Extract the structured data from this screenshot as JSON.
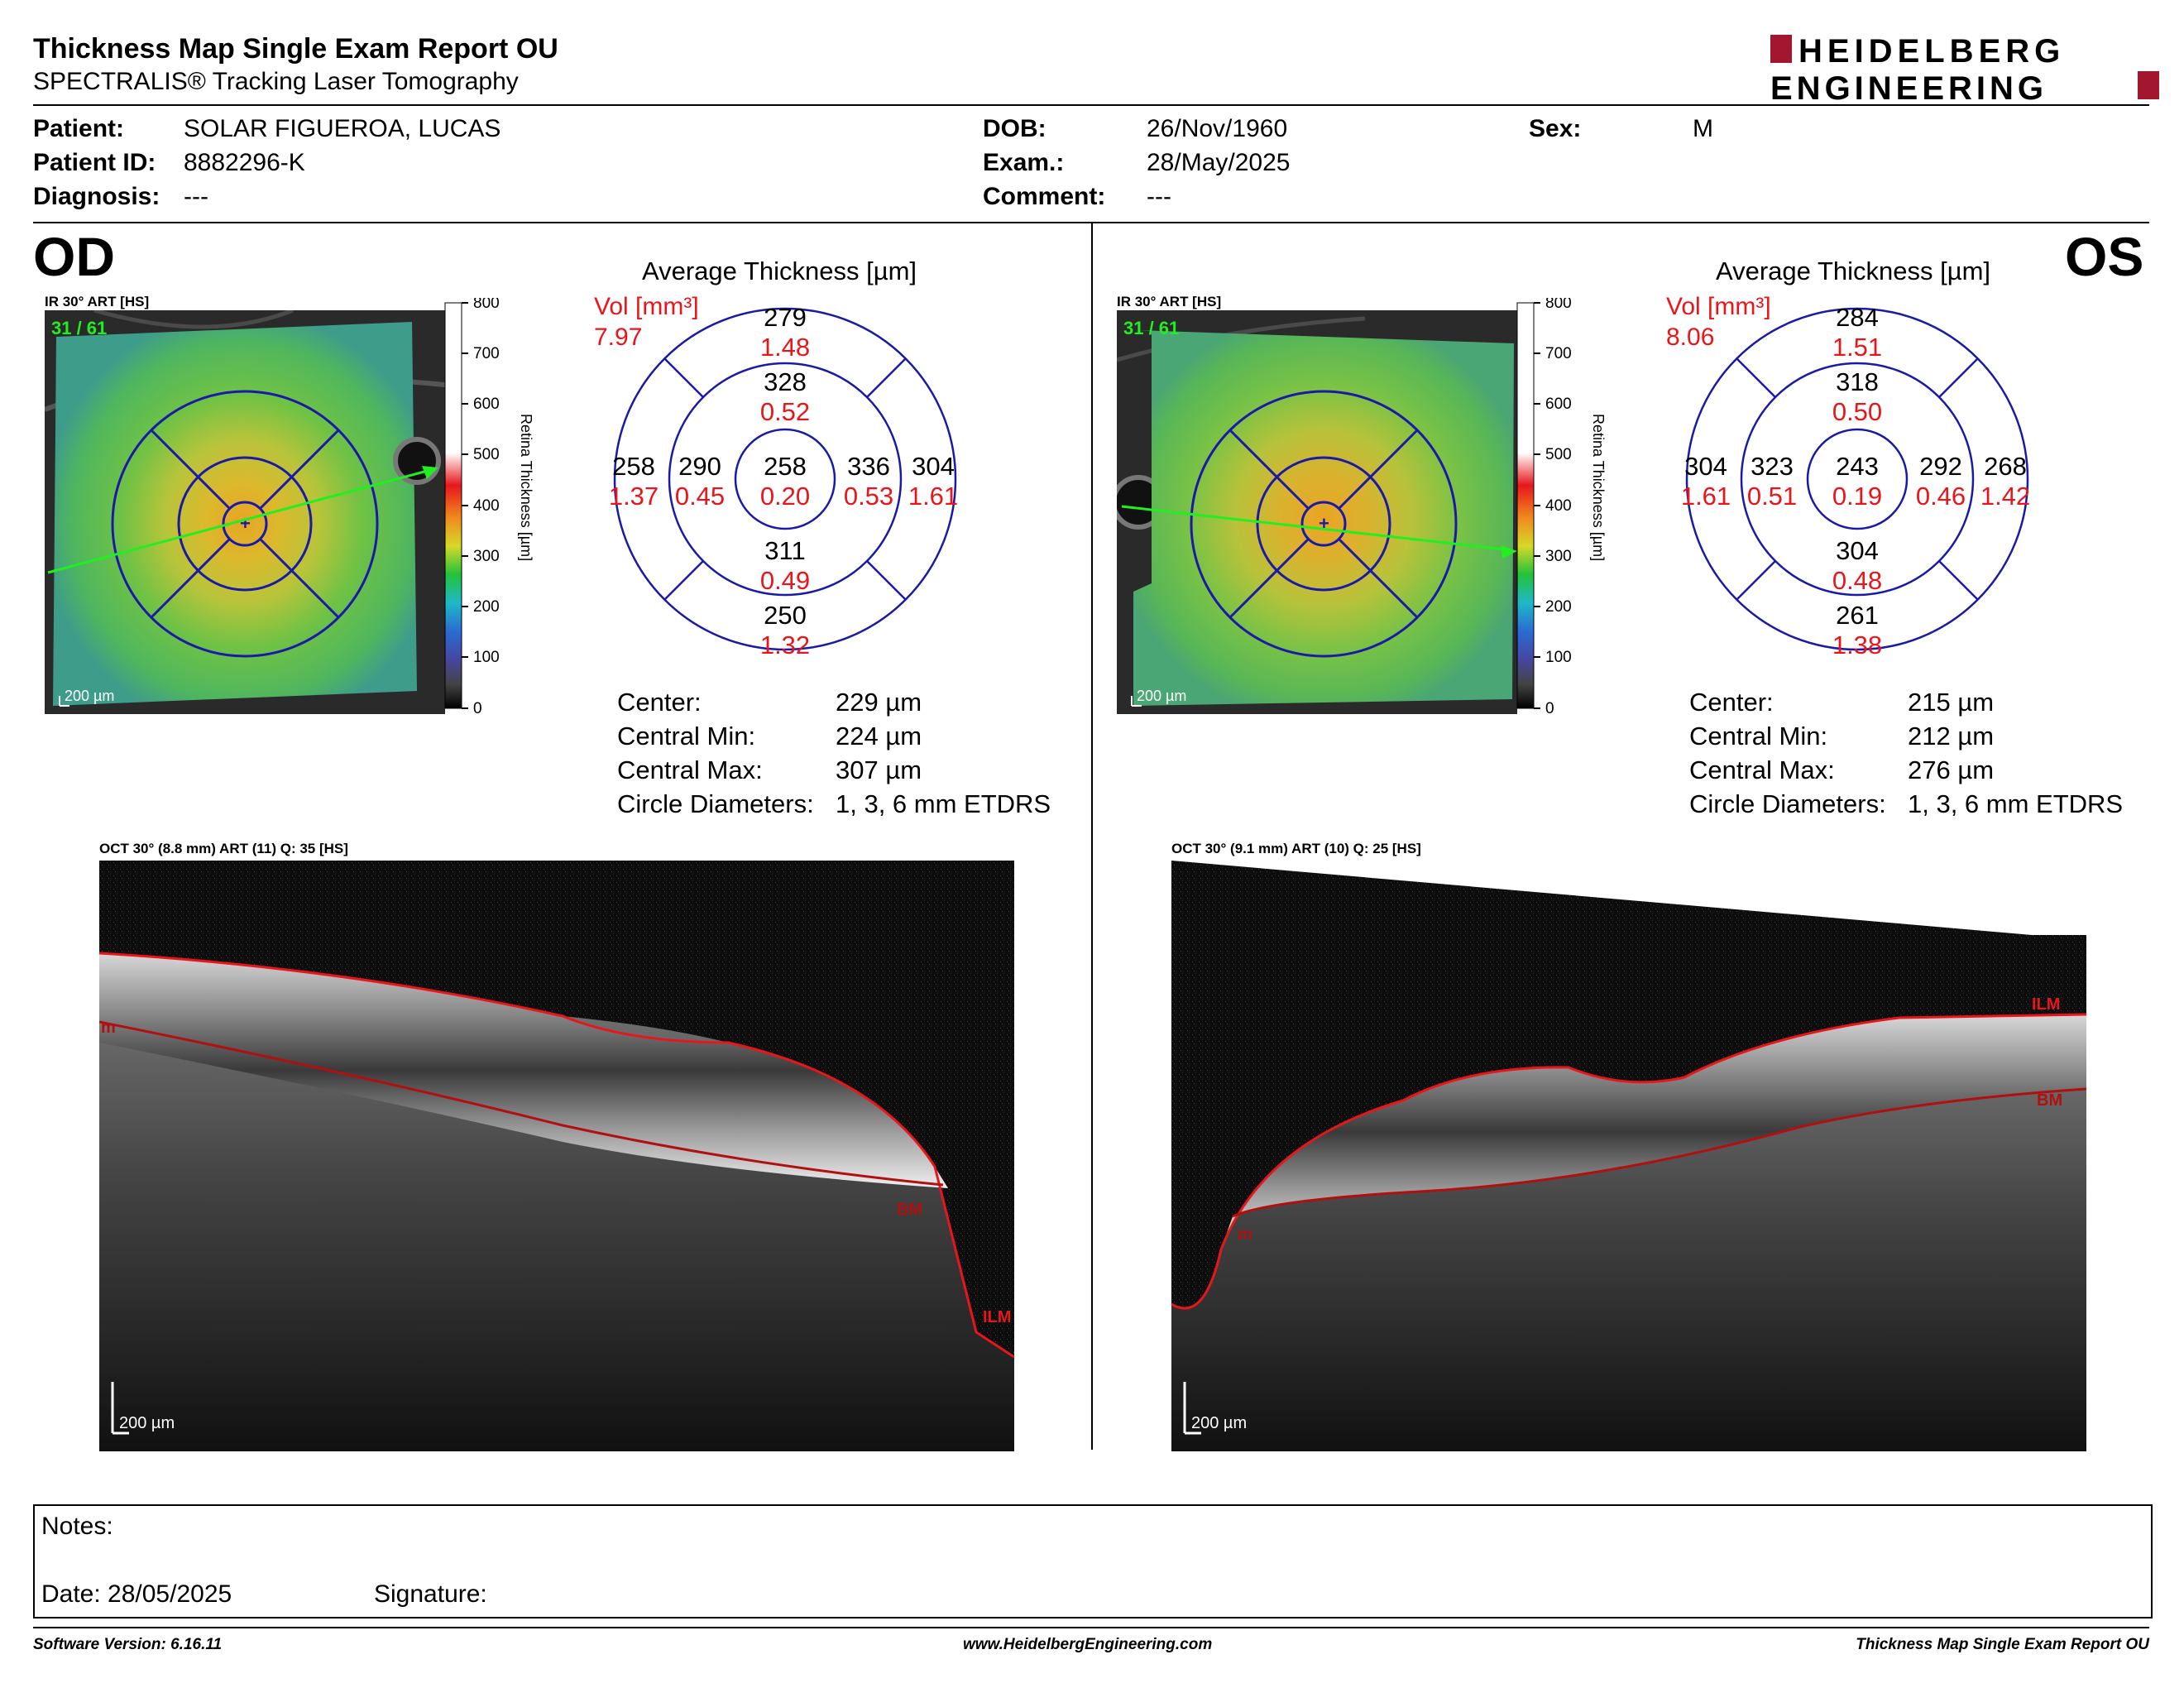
{
  "header": {
    "title": "Thickness Map Single Exam Report OU",
    "subtitle": "SPECTRALIS® Tracking Laser Tomography",
    "logo_line1": "HEIDELBERG",
    "logo_line2": "ENGINEERING"
  },
  "patient": {
    "patient_label": "Patient:",
    "patient_value": "SOLAR FIGUEROA, LUCAS",
    "id_label": "Patient ID:",
    "id_value": "8882296-K",
    "diagnosis_label": "Diagnosis:",
    "diagnosis_value": "---",
    "dob_label": "DOB:",
    "dob_value": "26/Nov/1960",
    "exam_label": "Exam.:",
    "exam_value": "28/May/2025",
    "comment_label": "Comment:",
    "comment_value": "---",
    "sex_label": "Sex:",
    "sex_value": "M"
  },
  "od": {
    "eye_label": "OD",
    "ir_header": "IR 30° ART [HS]",
    "frames": "31 / 61",
    "scale_label": "200 µm",
    "colorbar_ticks": [
      "800",
      "700",
      "600",
      "500",
      "400",
      "300",
      "200",
      "100",
      "0"
    ],
    "colorbar_title": "Retina Thickness [µm]",
    "avg_title": "Average Thickness [µm]",
    "vol_label": "Vol [mm³]",
    "vol_total": "7.97",
    "sectors": {
      "outer_top": {
        "t": "279",
        "v": "1.48"
      },
      "inner_top": {
        "t": "328",
        "v": "0.52"
      },
      "outer_left": {
        "t": "258",
        "v": "1.37"
      },
      "inner_left": {
        "t": "290",
        "v": "0.45"
      },
      "center": {
        "t": "258",
        "v": "0.20"
      },
      "inner_right": {
        "t": "336",
        "v": "0.53"
      },
      "outer_right": {
        "t": "304",
        "v": "1.61"
      },
      "inner_bottom": {
        "t": "311",
        "v": "0.49"
      },
      "outer_bottom": {
        "t": "250",
        "v": "1.32"
      }
    },
    "stats": {
      "center_label": "Center:",
      "center_value": "229 µm",
      "min_label": "Central Min:",
      "min_value": "224 µm",
      "max_label": "Central Max:",
      "max_value": "307 µm",
      "diam_label": "Circle Diameters:",
      "diam_value": "1, 3, 6 mm ETDRS"
    },
    "oct_header": "OCT 30° (8.8 mm) ART (11) Q: 35 [HS]",
    "oct_scale": "200 µm",
    "labels": {
      "ilm": "ILM",
      "bm": "BM",
      "m": "m"
    }
  },
  "os": {
    "eye_label": "OS",
    "ir_header": "IR 30° ART [HS]",
    "frames": "31 / 61",
    "scale_label": "200 µm",
    "colorbar_ticks": [
      "800",
      "700",
      "600",
      "500",
      "400",
      "300",
      "200",
      "100",
      "0"
    ],
    "colorbar_title": "Retina Thickness [µm]",
    "avg_title": "Average Thickness [µm]",
    "vol_label": "Vol [mm³]",
    "vol_total": "8.06",
    "sectors": {
      "outer_top": {
        "t": "284",
        "v": "1.51"
      },
      "inner_top": {
        "t": "318",
        "v": "0.50"
      },
      "outer_left": {
        "t": "304",
        "v": "1.61"
      },
      "inner_left": {
        "t": "323",
        "v": "0.51"
      },
      "center": {
        "t": "243",
        "v": "0.19"
      },
      "inner_right": {
        "t": "292",
        "v": "0.46"
      },
      "outer_right": {
        "t": "268",
        "v": "1.42"
      },
      "inner_bottom": {
        "t": "304",
        "v": "0.48"
      },
      "outer_bottom": {
        "t": "261",
        "v": "1.38"
      }
    },
    "stats": {
      "center_label": "Center:",
      "center_value": "215 µm",
      "min_label": "Central Min:",
      "min_value": "212 µm",
      "max_label": "Central Max:",
      "max_value": "276 µm",
      "diam_label": "Circle Diameters:",
      "diam_value": "1, 3, 6 mm ETDRS"
    },
    "oct_header": "OCT 30° (9.1 mm) ART (10) Q: 25 [HS]",
    "oct_scale": "200 µm",
    "labels": {
      "ilm": "ILM",
      "bm": "BM",
      "m": "m"
    }
  },
  "notes": {
    "notes_label": "Notes:",
    "date_label": "Date: 28/05/2025",
    "signature_label": "Signature:"
  },
  "footer": {
    "software": "Software Version: 6.16.11",
    "website": "www.HeidelbergEngineering.com",
    "report_name": "Thickness Map Single Exam Report OU"
  },
  "colors": {
    "accent_red": "#e8161b",
    "logo_red": "#a2172f",
    "grid_blue": "#1a1aa6",
    "scan_green": "#22ee22"
  }
}
